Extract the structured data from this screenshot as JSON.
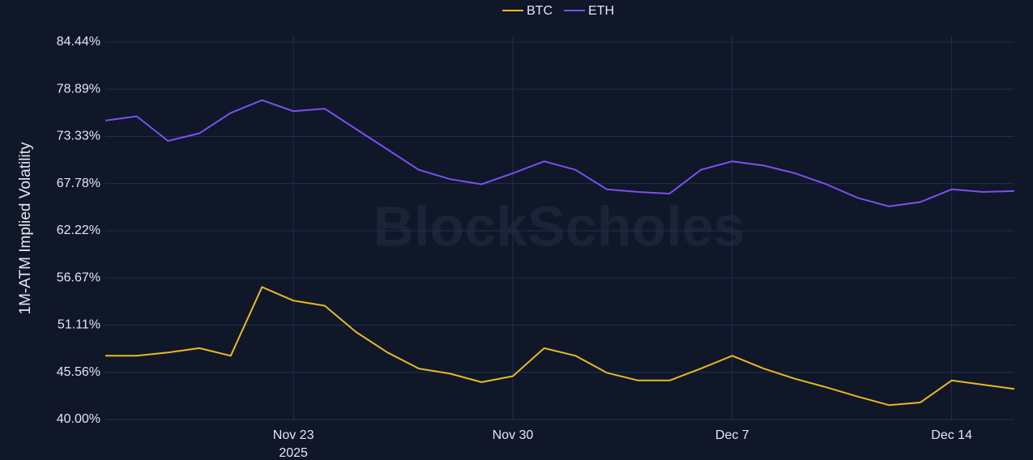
{
  "chart_data": {
    "type": "line",
    "y_label": "1M-ATM Implied Volatility",
    "watermark": "BlockScholes",
    "x": [
      "2025-11-17",
      "2025-11-18",
      "2025-11-19",
      "2025-11-20",
      "2025-11-21",
      "2025-11-22",
      "2025-11-23",
      "2025-11-24",
      "2025-11-25",
      "2025-11-26",
      "2025-11-27",
      "2025-11-28",
      "2025-11-29",
      "2025-11-30",
      "2025-12-01",
      "2025-12-02",
      "2025-12-03",
      "2025-12-04",
      "2025-12-05",
      "2025-12-06",
      "2025-12-07",
      "2025-12-08",
      "2025-12-09",
      "2025-12-10",
      "2025-12-11",
      "2025-12-12",
      "2025-12-13",
      "2025-12-14",
      "2025-12-15",
      "2025-12-16"
    ],
    "series": [
      {
        "name": "BTC",
        "color": "#e8b923",
        "values": [
          47.5,
          47.5,
          47.9,
          48.4,
          47.5,
          55.6,
          54.0,
          53.4,
          50.3,
          47.9,
          46.0,
          45.4,
          44.4,
          45.1,
          48.4,
          47.5,
          45.5,
          44.6,
          44.6,
          46.0,
          47.5,
          46.0,
          44.8,
          43.8,
          42.7,
          41.7,
          42.0,
          44.6,
          44.1,
          43.6
        ]
      },
      {
        "name": "ETH",
        "color": "#7d4ff0",
        "values": [
          75.2,
          75.7,
          72.8,
          73.7,
          76.1,
          77.6,
          76.3,
          76.6,
          74.2,
          71.8,
          69.4,
          68.3,
          67.7,
          69.0,
          70.4,
          69.4,
          67.1,
          66.8,
          66.6,
          69.4,
          70.4,
          69.9,
          69.0,
          67.7,
          66.1,
          65.1,
          65.6,
          67.1,
          66.8,
          66.9
        ]
      }
    ],
    "xlim": [
      "2025-11-17",
      "2025-12-16"
    ],
    "xticks": [
      {
        "value": "2025-11-23",
        "label": "Nov 23"
      },
      {
        "value": "2025-11-30",
        "label": "Nov 30"
      },
      {
        "value": "2025-12-07",
        "label": "Dec 7"
      },
      {
        "value": "2025-12-14",
        "label": "Dec 14"
      }
    ],
    "xtick_year": "2025",
    "ylim": [
      40,
      85.2
    ],
    "yticks": [
      {
        "value": 40,
        "label": "40.00%"
      },
      {
        "value": 45.56,
        "label": "45.56%"
      },
      {
        "value": 51.11,
        "label": "51.11%"
      },
      {
        "value": 56.67,
        "label": "56.67%"
      },
      {
        "value": 62.22,
        "label": "62.22%"
      },
      {
        "value": 67.78,
        "label": "67.78%"
      },
      {
        "value": 73.33,
        "label": "73.33%"
      },
      {
        "value": 78.89,
        "label": "78.89%"
      },
      {
        "value": 84.44,
        "label": "84.44%"
      }
    ],
    "grid": true,
    "legend": "top"
  }
}
